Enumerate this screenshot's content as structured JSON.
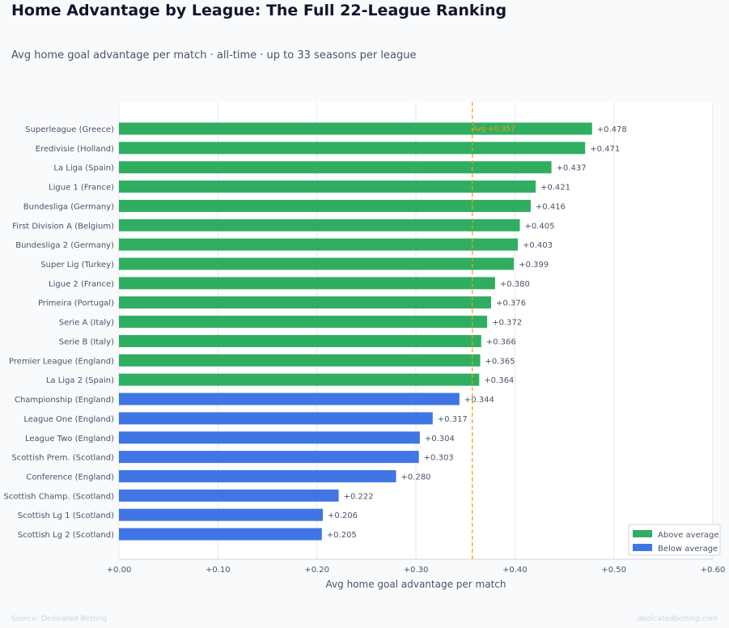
{
  "header": {
    "title": "Home Advantage by League: The Full 22-League Ranking",
    "subtitle": "Avg home goal advantage per match · all-time · up to 33 seasons per league"
  },
  "footer": {
    "source": "Source: Dedicated Betting",
    "brand": "dedicatedbetting.com"
  },
  "colors": {
    "above": "#2fae62",
    "below": "#3f76e4",
    "avg_line": "#f59e0b",
    "grid": "#e5e7eb",
    "text": "#475569"
  },
  "chart_data": {
    "type": "bar",
    "orientation": "horizontal",
    "xlabel": "Avg home goal advantage per match",
    "ylabel": "",
    "xlim": [
      0,
      0.6
    ],
    "xticks": [
      "+0.00",
      "+0.10",
      "+0.20",
      "+0.30",
      "+0.40",
      "+0.50",
      "+0.60"
    ],
    "grid": "vertical",
    "average": 0.357,
    "average_label": "Avg +0.357",
    "legend_position": "bottom-right",
    "legend": [
      {
        "label": "Above average",
        "group": "above"
      },
      {
        "label": "Below average",
        "group": "below"
      }
    ],
    "categories": [
      "Superleague  (Greece)",
      "Eredivisie  (Holland)",
      "La Liga  (Spain)",
      "Ligue 1  (France)",
      "Bundesliga  (Germany)",
      "First Division A  (Belgium)",
      "Bundesliga 2  (Germany)",
      "Super Lig  (Turkey)",
      "Ligue 2  (France)",
      "Primeira  (Portugal)",
      "Serie A  (Italy)",
      "Serie B  (Italy)",
      "Premier League  (England)",
      "La Liga 2  (Spain)",
      "Championship  (England)",
      "League One  (England)",
      "League Two  (England)",
      "Scottish Prem.  (Scotland)",
      "Conference  (England)",
      "Scottish Champ.  (Scotland)",
      "Scottish Lg 1  (Scotland)",
      "Scottish Lg 2  (Scotland)"
    ],
    "values": [
      0.478,
      0.471,
      0.437,
      0.421,
      0.416,
      0.405,
      0.403,
      0.399,
      0.38,
      0.376,
      0.372,
      0.366,
      0.365,
      0.364,
      0.344,
      0.317,
      0.304,
      0.303,
      0.28,
      0.222,
      0.206,
      0.205
    ],
    "value_labels": [
      "+0.478",
      "+0.471",
      "+0.437",
      "+0.421",
      "+0.416",
      "+0.405",
      "+0.403",
      "+0.399",
      "+0.380",
      "+0.376",
      "+0.372",
      "+0.366",
      "+0.365",
      "+0.364",
      "+0.344",
      "+0.317",
      "+0.304",
      "+0.303",
      "+0.280",
      "+0.222",
      "+0.206",
      "+0.205"
    ],
    "groups": [
      "above",
      "above",
      "above",
      "above",
      "above",
      "above",
      "above",
      "above",
      "above",
      "above",
      "above",
      "above",
      "above",
      "above",
      "below",
      "below",
      "below",
      "below",
      "below",
      "below",
      "below",
      "below"
    ]
  }
}
